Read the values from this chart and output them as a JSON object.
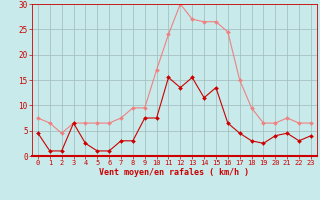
{
  "x": [
    0,
    1,
    2,
    3,
    4,
    5,
    6,
    7,
    8,
    9,
    10,
    11,
    12,
    13,
    14,
    15,
    16,
    17,
    18,
    19,
    20,
    21,
    22,
    23
  ],
  "rafales": [
    7.5,
    6.5,
    4.5,
    6.5,
    6.5,
    6.5,
    6.5,
    7.5,
    9.5,
    9.5,
    17,
    24,
    30,
    27,
    26.5,
    26.5,
    24.5,
    15,
    9.5,
    6.5,
    6.5,
    7.5,
    6.5,
    6.5
  ],
  "vent_moyen": [
    4.5,
    1,
    1,
    6.5,
    2.5,
    1,
    1,
    3,
    3,
    7.5,
    7.5,
    15.5,
    13.5,
    15.5,
    11.5,
    13.5,
    6.5,
    4.5,
    3,
    2.5,
    4,
    4.5,
    3,
    4
  ],
  "color_rafales": "#f08080",
  "color_vent": "#cc0000",
  "background_color": "#c8eaea",
  "grid_color": "#a0b8b8",
  "xlabel": "Vent moyen/en rafales ( km/h )",
  "xlabel_color": "#cc0000",
  "ylim": [
    0,
    30
  ],
  "yticks": [
    0,
    5,
    10,
    15,
    20,
    25,
    30
  ],
  "xticks": [
    0,
    1,
    2,
    3,
    4,
    5,
    6,
    7,
    8,
    9,
    10,
    11,
    12,
    13,
    14,
    15,
    16,
    17,
    18,
    19,
    20,
    21,
    22,
    23
  ]
}
